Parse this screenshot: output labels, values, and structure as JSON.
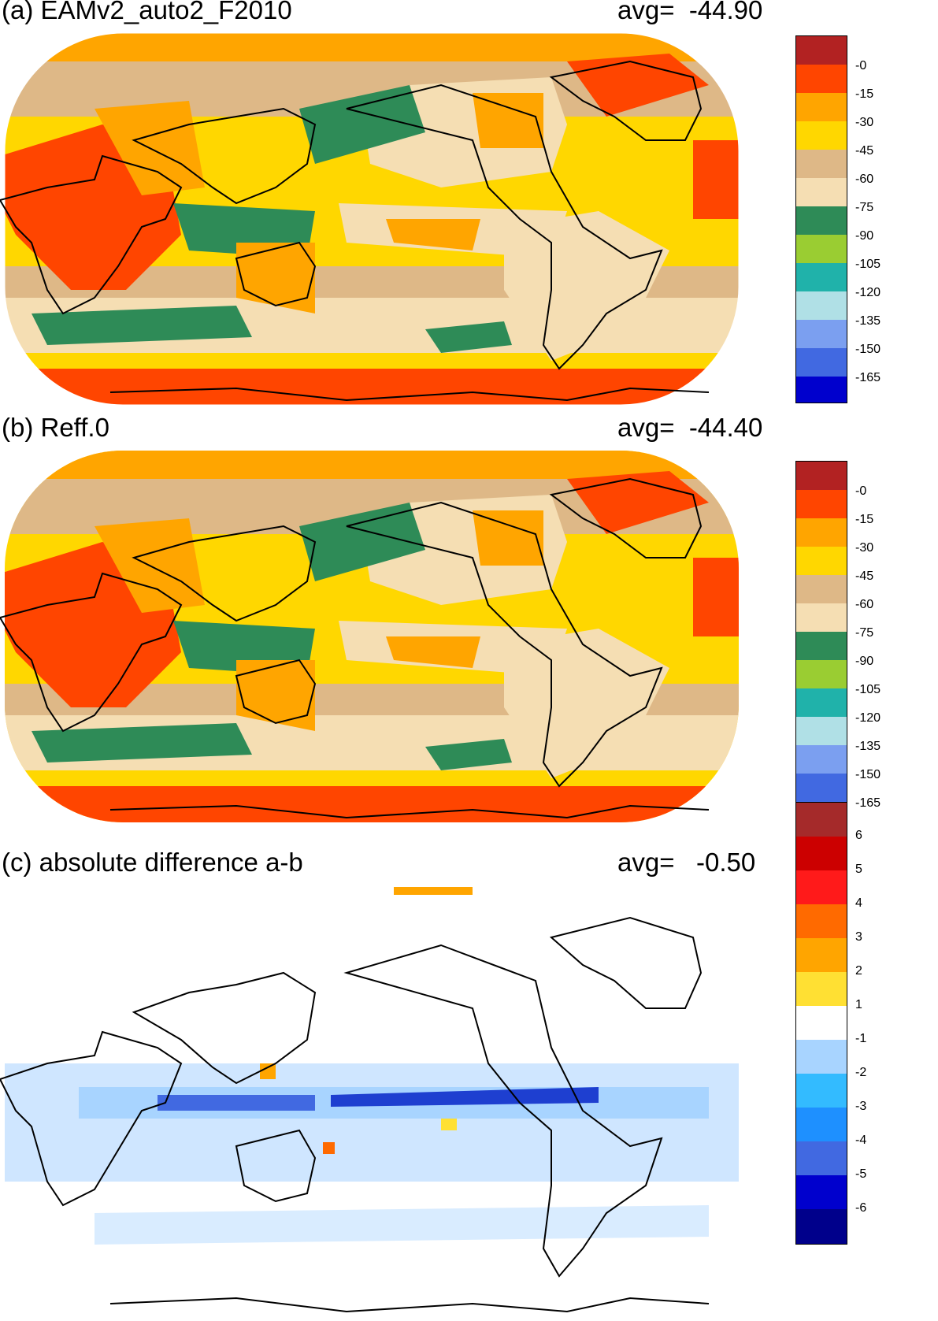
{
  "panels": [
    {
      "title": "(a) EAMv2_auto2_F2010",
      "avg_text": "avg=  -44.90",
      "colorbar": {
        "labels": [
          "-0",
          "-15",
          "-30",
          "-45",
          "-60",
          "-75",
          "-90",
          "-105",
          "-120",
          "-135",
          "-150",
          "-165"
        ],
        "colors": [
          "#b22222",
          "#ff4500",
          "#ffa500",
          "#ffd700",
          "#deb887",
          "#f5deb3",
          "#2e8b57",
          "#9acd32",
          "#20b2aa",
          "#b0e0e6",
          "#7b9ff0",
          "#4169e1",
          "#0000cd"
        ]
      }
    },
    {
      "title": "(b) Reff.0",
      "avg_text": "avg=  -44.40",
      "colorbar": {
        "labels": [
          "-0",
          "-15",
          "-30",
          "-45",
          "-60",
          "-75",
          "-90",
          "-105",
          "-120",
          "-135",
          "-150",
          "-165"
        ],
        "colors": [
          "#b22222",
          "#ff4500",
          "#ffa500",
          "#ffd700",
          "#deb887",
          "#f5deb3",
          "#2e8b57",
          "#9acd32",
          "#20b2aa",
          "#b0e0e6",
          "#7b9ff0",
          "#4169e1",
          "#0000cd"
        ]
      }
    },
    {
      "title": "(c) absolute difference a-b",
      "avg_text": "avg=   -0.50",
      "colorbar": {
        "labels": [
          "6",
          "5",
          "4",
          "3",
          "2",
          "1",
          "-1",
          "-2",
          "-3",
          "-4",
          "-5",
          "-6"
        ],
        "colors": [
          "#a52a2a",
          "#cc0000",
          "#ff1a1a",
          "#ff6a00",
          "#ffa500",
          "#ffe033",
          "#ffffff",
          "#a8d4ff",
          "#33bbff",
          "#1e90ff",
          "#4169e1",
          "#0000cd",
          "#00008b"
        ]
      }
    }
  ]
}
